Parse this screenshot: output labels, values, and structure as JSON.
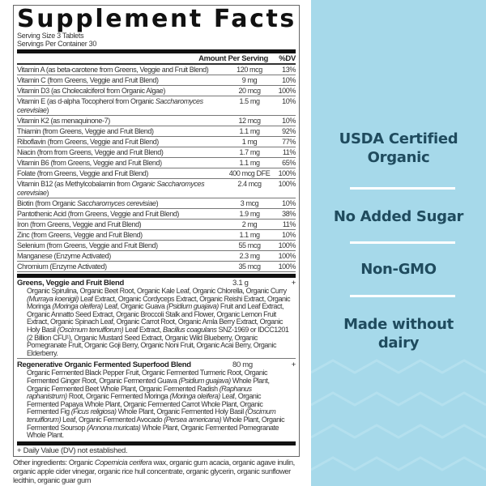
{
  "label": {
    "title": "Supplement Facts",
    "serving_size": "Serving Size 3 Tablets",
    "servings_per_container": "Servings Per Container 30",
    "col_amount": "Amount Per Serving",
    "col_dv": "%DV",
    "rows": [
      {
        "name": [
          [
            "Vitamin A (as beta-carotene from Greens, Veggie and Fruit Blend)",
            false
          ]
        ],
        "amount": "120 mcg",
        "dv": "13%"
      },
      {
        "name": [
          [
            "Vitamin C (from Greens, Veggie and Fruit Blend)",
            false
          ]
        ],
        "amount": "9 mg",
        "dv": "10%"
      },
      {
        "name": [
          [
            "Vitamin D3 (as Cholecalciferol from Organic Algae)",
            false
          ]
        ],
        "amount": "20 mcg",
        "dv": "100%"
      },
      {
        "name": [
          [
            "Vitamin E (as d-alpha Tocopherol from Organic ",
            false
          ],
          [
            "Saccharomyces cerevisiae",
            true
          ],
          [
            ")",
            false
          ]
        ],
        "amount": "1.5 mg",
        "dv": "10%"
      },
      {
        "name": [
          [
            "Vitamin K2 (as menaquinone-7)",
            false
          ]
        ],
        "amount": "12 mcg",
        "dv": "10%"
      },
      {
        "name": [
          [
            "Thiamin (from Greens, Veggie and Fruit Blend)",
            false
          ]
        ],
        "amount": "1.1 mg",
        "dv": "92%"
      },
      {
        "name": [
          [
            "Riboflavin (from Greens, Veggie and Fruit Blend)",
            false
          ]
        ],
        "amount": "1 mg",
        "dv": "77%"
      },
      {
        "name": [
          [
            "Niacin (from from Greens, Veggie and Fruit Blend)",
            false
          ]
        ],
        "amount": "1.7 mg",
        "dv": "11%"
      },
      {
        "name": [
          [
            "Vitamin B6 (from Greens, Veggie and Fruit Blend)",
            false
          ]
        ],
        "amount": "1.1 mg",
        "dv": "65%"
      },
      {
        "name": [
          [
            "Folate (from Greens, Veggie and Fruit Blend)",
            false
          ]
        ],
        "amount": "400 mcg DFE",
        "dv": "100%"
      },
      {
        "name": [
          [
            "Vitamin B12 (as Methylcobalamin from ",
            false
          ],
          [
            "Organic Saccharomyces cerevisiae",
            true
          ],
          [
            ")",
            false
          ]
        ],
        "amount": "2.4 mcg",
        "dv": "100%"
      },
      {
        "name": [
          [
            "Biotin (from Organic ",
            false
          ],
          [
            "Saccharomyces cerevisiae",
            true
          ],
          [
            ")",
            false
          ]
        ],
        "amount": "3 mcg",
        "dv": "10%"
      },
      {
        "name": [
          [
            "Pantothenic Acid (from Greens, Veggie and Fruit Blend)",
            false
          ]
        ],
        "amount": "1.9 mg",
        "dv": "38%"
      },
      {
        "name": [
          [
            "Iron (from Greens, Veggie and Fruit Blend)",
            false
          ]
        ],
        "amount": "2 mg",
        "dv": "11%"
      },
      {
        "name": [
          [
            "Zinc (from Greens, Veggie and Fruit Blend)",
            false
          ]
        ],
        "amount": "1.1 mg",
        "dv": "10%"
      },
      {
        "name": [
          [
            "Selenium (from Greens, Veggie and Fruit Blend)",
            false
          ]
        ],
        "amount": "55 mcg",
        "dv": "100%"
      },
      {
        "name": [
          [
            "Manganese (Enzyme Activated)",
            false
          ]
        ],
        "amount": "2.3 mg",
        "dv": "100%"
      },
      {
        "name": [
          [
            "Chromium (Enzyme Activated)",
            false
          ]
        ],
        "amount": "35 mcg",
        "dv": "100%"
      }
    ],
    "blends": [
      {
        "name": "Greens, Veggie and Fruit Blend",
        "amount": "3.1 g",
        "dv": "+",
        "ingredients": [
          [
            "Organic Spirulina, Organic Beet Root, Organic Kale Leaf, Organic Chlorella, Organic Curry ",
            false
          ],
          [
            "(Murraya koenigii)",
            true
          ],
          [
            " Leaf Extract, Organic Cordyceps Extract, Organic Reishi Extract, Organic Moringa ",
            false
          ],
          [
            "(Moringa oleifera)",
            true
          ],
          [
            " Leaf, Organic Guava ",
            false
          ],
          [
            "(Psidium guajava)",
            true
          ],
          [
            " Fruit and Leaf Extract, Organic Annatto Seed Extract, Organic Broccoli Stalk and Flower, Organic Lemon Fruit Extract, Organic Spinach Leaf, Organic Carrot Root, Organic Amla Berry Extract, Organic Holy Basil ",
            false
          ],
          [
            "(Oscimum tenuiflorum)",
            true
          ],
          [
            " Leaf Extract, ",
            false
          ],
          [
            "Bacillus coagulans",
            true
          ],
          [
            " SNZ-1969 or IDCC1201 (2 Billion CFU¹), Organic Mustard Seed Extract, Organic Wild Blueberry, Organic Pomegranate Fruit, Organic Goji Berry, Organic Noni Fruit, Organic Acai Berry, Organic Elderberry.",
            false
          ]
        ]
      },
      {
        "name": "Regenerative Organic Fermented Superfood Blend",
        "amount": "80 mg",
        "dv": "+",
        "ingredients": [
          [
            "Organic Fermented Black Pepper Fruit, Organic Fermented Turmeric Root, Organic Fermented Ginger Root, Organic Fermented Guava ",
            false
          ],
          [
            "(Psidium guajava)",
            true
          ],
          [
            " Whole Plant, Organic Fermented Beet Whole Plant, Organic Fermented Radish ",
            false
          ],
          [
            "(Raphanus raphanistrum)",
            true
          ],
          [
            " Root, Organic Fermented Moringa ",
            false
          ],
          [
            "(Moringa oleifera)",
            true
          ],
          [
            " Leaf, Organic Fermented Papaya Whole Plant, Organic Fermented Carrot Whole Plant, Organic Fermented Fig ",
            false
          ],
          [
            "(Ficus religiosa)",
            true
          ],
          [
            " Whole Plant, Organic Fermented Holy Basil ",
            false
          ],
          [
            "(Oscimum tenuiflorum)",
            true
          ],
          [
            " Leaf, Organic Fermented Avocado ",
            false
          ],
          [
            "(Persea americana)",
            true
          ],
          [
            " Whole Plant, Organic Fermented Soursop ",
            false
          ],
          [
            "(Annona muricata)",
            true
          ],
          [
            " Whole Plant, Organic Fermented Pomegranate Whole Plant.",
            false
          ]
        ]
      }
    ],
    "dv_note": "+ Daily Value (DV) not established.",
    "other_ingredients": [
      [
        "Other ingredients: Organic ",
        false
      ],
      [
        "Copernicia cerifera",
        true
      ],
      [
        " wax, organic gum acacia, organic agave inulin, organic apple cider vinegar, organic rice hull concentrate, organic glycerin, organic sunflower lecithin, organic guar gum",
        false
      ]
    ]
  },
  "claims": {
    "colors": {
      "panel": "#a6d9ea",
      "text": "#1f4b5e",
      "divider": "#ffffff"
    },
    "items": [
      "USDA Certified Organic",
      "No Added Sugar",
      "Non-GMO",
      "Made without dairy"
    ]
  }
}
